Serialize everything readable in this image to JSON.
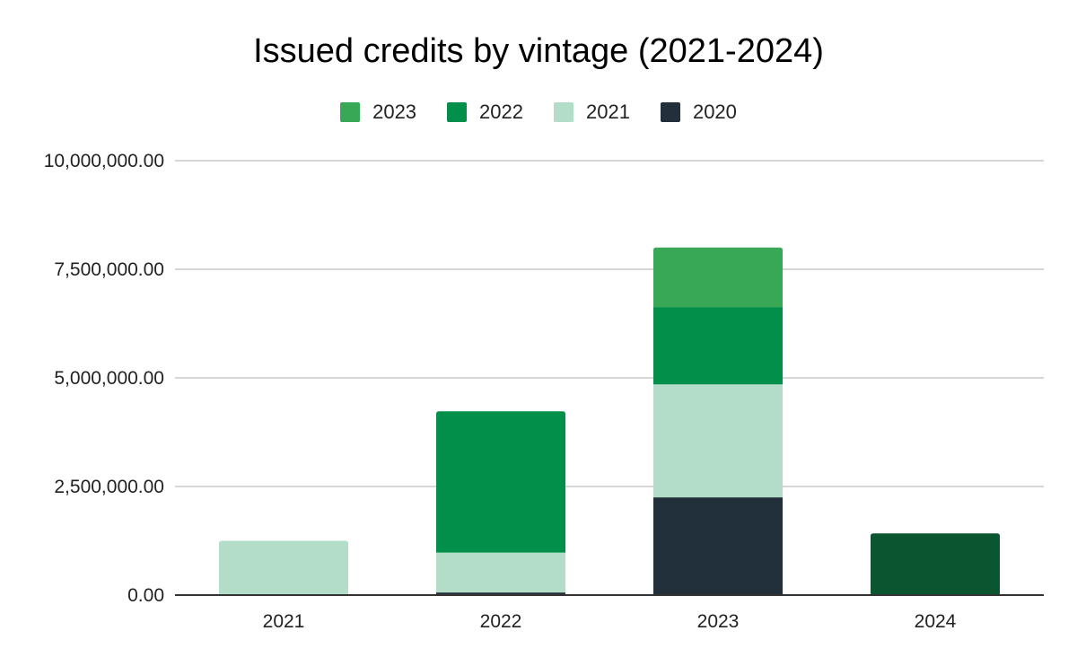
{
  "title": "Issued credits by vintage (2021-2024)",
  "legend": [
    {
      "label": "2023",
      "color": "#38a856"
    },
    {
      "label": "2022",
      "color": "#028f4a"
    },
    {
      "label": "2021",
      "color": "#b3ddc8"
    },
    {
      "label": "2020",
      "color": "#22303b"
    }
  ],
  "chart_data": {
    "type": "bar",
    "stacked": true,
    "title": "Issued credits by vintage (2021-2024)",
    "xlabel": "",
    "ylabel": "",
    "categories": [
      "2021",
      "2022",
      "2023",
      "2024"
    ],
    "ylim": [
      0,
      10000000
    ],
    "yticks": [
      0,
      2500000,
      5000000,
      7500000,
      10000000
    ],
    "ytick_labels": [
      "0.00",
      "2,500,000.00",
      "5,000,000.00",
      "7,500,000.00",
      "10,000,000.00"
    ],
    "grid": true,
    "legend_position": "top",
    "series": [
      {
        "name": "2020",
        "color": "#22303b",
        "values": [
          0,
          60000,
          2250000,
          0
        ]
      },
      {
        "name": "2021",
        "color": "#b3ddc8",
        "values": [
          1250000,
          920000,
          2600000,
          0
        ]
      },
      {
        "name": "2022",
        "color": "#028f4a",
        "values": [
          0,
          3250000,
          1780000,
          0
        ]
      },
      {
        "name": "2023",
        "color": "#38a856",
        "values": [
          0,
          0,
          1370000,
          0
        ]
      },
      {
        "name": "",
        "color": "#0b5530",
        "values": [
          0,
          0,
          0,
          1420000
        ]
      }
    ]
  }
}
